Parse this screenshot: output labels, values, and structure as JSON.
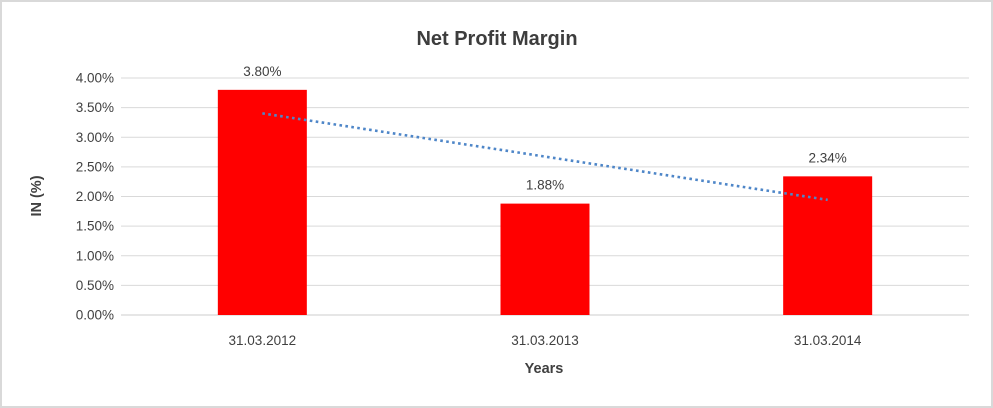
{
  "frame": {
    "background_color": "#FFFFFF",
    "border_color": "#D9D9D9"
  },
  "chart_data": {
    "type": "bar",
    "title": "Net Profit Margin",
    "xlabel": "Years",
    "ylabel": "IN (%)",
    "categories": [
      "31.03.2012",
      "31.03.2013",
      "31.03.2014"
    ],
    "values": [
      3.8,
      1.88,
      2.34
    ],
    "data_labels": [
      "3.80%",
      "1.88%",
      "2.34%"
    ],
    "ylim": [
      0,
      4
    ],
    "ytick_step": 0.5,
    "ytick_labels": [
      "0.00%",
      "0.50%",
      "1.00%",
      "1.50%",
      "2.00%",
      "2.50%",
      "3.00%",
      "3.50%",
      "4.00%"
    ],
    "grid": true,
    "legend": "none",
    "bar_color": "#FF0000",
    "text_color": "#404040",
    "gridline_color": "#D9D9D9",
    "axisline_color": "#CCCCCC",
    "trendline": {
      "type": "linear",
      "style": "dotted",
      "color": "#4E86C8"
    }
  }
}
